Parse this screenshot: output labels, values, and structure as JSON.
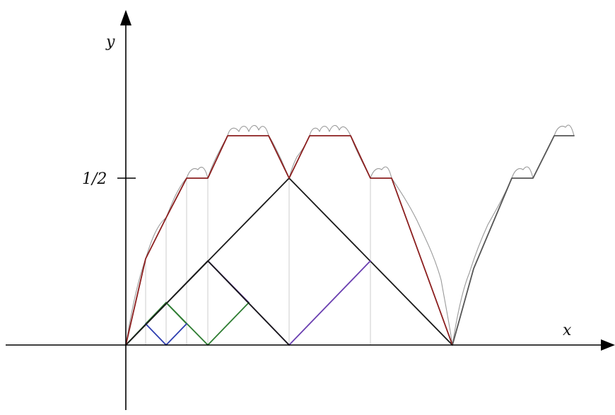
{
  "labels": {
    "y_axis": "y",
    "x_axis": "x",
    "y_tick": "1/2"
  },
  "colors": {
    "axis": "#000000",
    "level1": "#1a1a1a",
    "level2": "#6a3fb0",
    "level3": "#2e7d32",
    "level4": "#2f3fb0",
    "envelope": "#8b1e1e",
    "fractal": "#9a9a9a",
    "guide": "#c9c9c9"
  }
}
